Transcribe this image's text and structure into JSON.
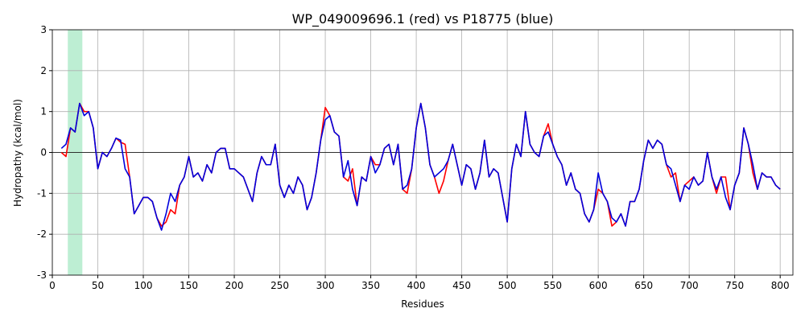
{
  "chart_data": {
    "type": "line",
    "title": "WP_049009696.1 (red) vs P18775 (blue)",
    "x_label": "Residues",
    "y_label": "Hydropathy (kcal/mol)",
    "xlim": [
      0,
      814
    ],
    "ylim": [
      -3,
      3
    ],
    "xticks": [
      0,
      50,
      100,
      150,
      200,
      250,
      300,
      350,
      400,
      450,
      500,
      550,
      600,
      650,
      700,
      750,
      800
    ],
    "yticks": [
      -3,
      -2,
      -1,
      0,
      1,
      2,
      3
    ],
    "grid": true,
    "hline": 0,
    "span": {
      "range": [
        17,
        33
      ],
      "color": "#bdeed3"
    },
    "x": [
      10,
      15,
      20,
      25,
      30,
      35,
      40,
      45,
      50,
      55,
      60,
      65,
      70,
      75,
      80,
      85,
      90,
      95,
      100,
      105,
      110,
      115,
      120,
      125,
      130,
      135,
      140,
      145,
      150,
      155,
      160,
      165,
      170,
      175,
      180,
      185,
      190,
      195,
      200,
      205,
      210,
      215,
      220,
      225,
      230,
      235,
      240,
      245,
      250,
      255,
      260,
      265,
      270,
      275,
      280,
      285,
      290,
      295,
      300,
      305,
      310,
      315,
      320,
      325,
      330,
      335,
      340,
      345,
      350,
      355,
      360,
      365,
      370,
      375,
      380,
      385,
      390,
      395,
      400,
      405,
      410,
      415,
      420,
      425,
      430,
      435,
      440,
      445,
      450,
      455,
      460,
      465,
      470,
      475,
      480,
      485,
      490,
      495,
      500,
      505,
      510,
      515,
      520,
      525,
      530,
      535,
      540,
      545,
      550,
      555,
      560,
      565,
      570,
      575,
      580,
      585,
      590,
      595,
      600,
      605,
      610,
      615,
      620,
      625,
      630,
      635,
      640,
      645,
      650,
      655,
      660,
      665,
      670,
      675,
      680,
      685,
      690,
      695,
      700,
      705,
      710,
      715,
      720,
      725,
      730,
      735,
      740,
      745,
      750,
      755,
      760,
      765,
      770,
      775,
      780,
      785,
      790,
      795,
      800
    ],
    "series": [
      {
        "name": "WP_049009696.1",
        "color": "#ff0000",
        "values": [
          0.0,
          -0.1,
          0.6,
          0.5,
          1.2,
          1.0,
          1.0,
          0.6,
          -0.4,
          0.0,
          -0.1,
          0.1,
          0.35,
          0.25,
          0.2,
          -0.6,
          -1.5,
          -1.3,
          -1.1,
          -1.1,
          -1.2,
          -1.6,
          -1.8,
          -1.7,
          -1.4,
          -1.5,
          -0.8,
          -0.6,
          -0.1,
          -0.6,
          -0.5,
          -0.7,
          -0.3,
          -0.5,
          0.0,
          0.1,
          0.1,
          -0.4,
          -0.4,
          -0.5,
          -0.6,
          -0.9,
          -1.2,
          -0.5,
          -0.1,
          -0.3,
          -0.3,
          0.2,
          -0.8,
          -1.1,
          -0.8,
          -1.0,
          -0.6,
          -0.8,
          -1.4,
          -1.1,
          -0.5,
          0.3,
          1.1,
          0.9,
          0.5,
          0.4,
          -0.6,
          -0.7,
          -0.4,
          -1.3,
          -0.6,
          -0.7,
          -0.1,
          -0.3,
          -0.3,
          0.1,
          0.2,
          -0.3,
          0.2,
          -0.9,
          -1.0,
          -0.4,
          0.6,
          1.2,
          0.6,
          -0.3,
          -0.6,
          -1.0,
          -0.7,
          -0.2,
          0.2,
          -0.3,
          -0.8,
          -0.3,
          -0.4,
          -0.9,
          -0.5,
          0.3,
          -0.6,
          -0.4,
          -0.5,
          -1.1,
          -1.7,
          -0.4,
          0.2,
          -0.1,
          1.0,
          0.2,
          0.0,
          -0.1,
          0.4,
          0.7,
          0.2,
          -0.1,
          -0.3,
          -0.8,
          -0.5,
          -0.9,
          -1.0,
          -1.5,
          -1.7,
          -1.4,
          -0.9,
          -1.0,
          -1.2,
          -1.8,
          -1.7,
          -1.5,
          -1.8,
          -1.2,
          -1.2,
          -0.9,
          -0.2,
          0.3,
          0.1,
          0.3,
          0.2,
          -0.3,
          -0.6,
          -0.5,
          -1.2,
          -0.8,
          -0.7,
          -0.6,
          -0.8,
          -0.7,
          0.0,
          -0.6,
          -1.0,
          -0.6,
          -0.6,
          -1.4,
          -0.8,
          -0.5,
          0.6,
          0.2,
          -0.5,
          -0.9,
          -0.5,
          -0.6,
          -0.6,
          -0.8,
          -0.9
        ]
      },
      {
        "name": "P18775",
        "color": "#0000dd",
        "values": [
          0.1,
          0.2,
          0.6,
          0.5,
          1.2,
          0.9,
          1.0,
          0.6,
          -0.4,
          0.0,
          -0.1,
          0.1,
          0.35,
          0.3,
          -0.4,
          -0.6,
          -1.5,
          -1.3,
          -1.1,
          -1.1,
          -1.2,
          -1.6,
          -1.9,
          -1.5,
          -1.0,
          -1.2,
          -0.8,
          -0.6,
          -0.1,
          -0.6,
          -0.5,
          -0.7,
          -0.3,
          -0.5,
          0.0,
          0.1,
          0.1,
          -0.4,
          -0.4,
          -0.5,
          -0.6,
          -0.9,
          -1.2,
          -0.5,
          -0.1,
          -0.3,
          -0.3,
          0.2,
          -0.8,
          -1.1,
          -0.8,
          -1.0,
          -0.6,
          -0.8,
          -1.4,
          -1.1,
          -0.5,
          0.3,
          0.8,
          0.9,
          0.5,
          0.4,
          -0.6,
          -0.2,
          -0.9,
          -1.3,
          -0.6,
          -0.7,
          -0.1,
          -0.5,
          -0.3,
          0.1,
          0.2,
          -0.3,
          0.2,
          -0.9,
          -0.8,
          -0.4,
          0.6,
          1.2,
          0.6,
          -0.3,
          -0.6,
          -0.5,
          -0.4,
          -0.2,
          0.2,
          -0.3,
          -0.8,
          -0.3,
          -0.4,
          -0.9,
          -0.5,
          0.3,
          -0.6,
          -0.4,
          -0.5,
          -1.1,
          -1.7,
          -0.4,
          0.2,
          -0.1,
          1.0,
          0.2,
          0.0,
          -0.1,
          0.4,
          0.5,
          0.2,
          -0.1,
          -0.3,
          -0.8,
          -0.5,
          -0.9,
          -1.0,
          -1.5,
          -1.7,
          -1.4,
          -0.5,
          -1.0,
          -1.2,
          -1.6,
          -1.7,
          -1.5,
          -1.8,
          -1.2,
          -1.2,
          -0.9,
          -0.2,
          0.3,
          0.1,
          0.3,
          0.2,
          -0.3,
          -0.4,
          -0.8,
          -1.2,
          -0.8,
          -0.9,
          -0.6,
          -0.8,
          -0.7,
          0.0,
          -0.6,
          -0.9,
          -0.6,
          -1.1,
          -1.4,
          -0.8,
          -0.5,
          0.6,
          0.2,
          -0.3,
          -0.9,
          -0.5,
          -0.6,
          -0.6,
          -0.8,
          -0.9
        ]
      }
    ]
  }
}
